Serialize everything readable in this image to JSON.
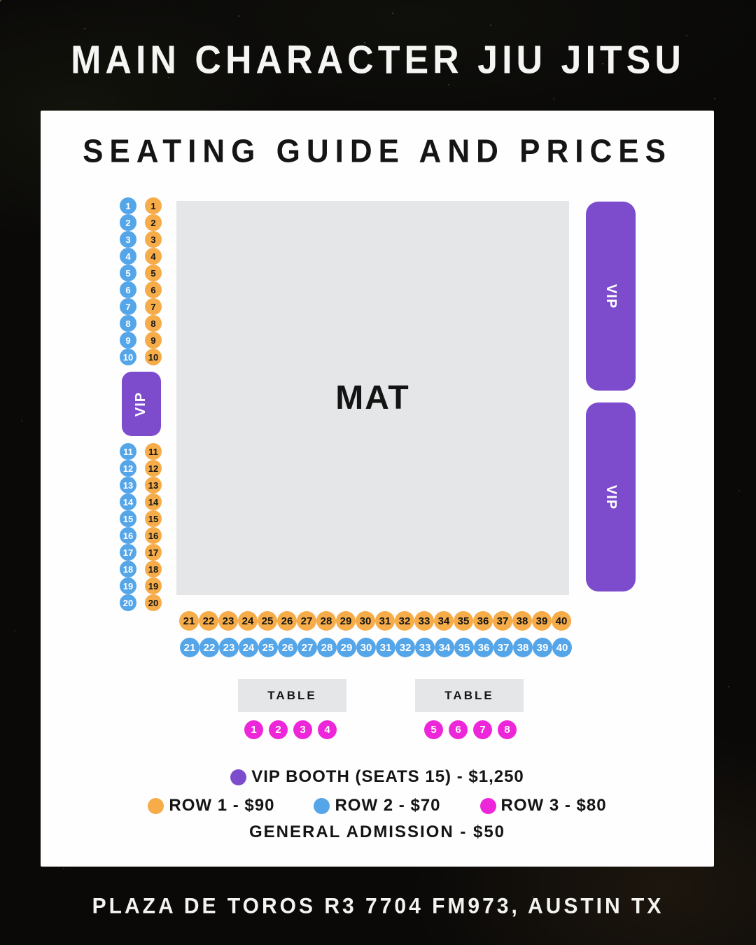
{
  "title": "MAIN CHARACTER JIU JITSU",
  "heading": "SEATING GUIDE AND PRICES",
  "footer": "PLAZA DE TOROS R3 7704 FM973, AUSTIN TX",
  "map": {
    "mat_label": "MAT",
    "vip_left_label": "VIP",
    "vip_right_top_label": "VIP",
    "vip_right_bottom_label": "VIP",
    "table1_label": "TABLE",
    "table2_label": "TABLE",
    "row2_blue_top": [
      "1",
      "2",
      "3",
      "4",
      "5",
      "6",
      "7",
      "8",
      "9",
      "10"
    ],
    "row1_orange_top": [
      "1",
      "2",
      "3",
      "4",
      "5",
      "6",
      "7",
      "8",
      "9",
      "10"
    ],
    "row2_blue_bottom": [
      "11",
      "12",
      "13",
      "14",
      "15",
      "16",
      "17",
      "18",
      "19",
      "20"
    ],
    "row1_orange_bottom": [
      "11",
      "12",
      "13",
      "14",
      "15",
      "16",
      "17",
      "18",
      "19",
      "20"
    ],
    "row1_orange_wide": [
      "21",
      "22",
      "23",
      "24",
      "25",
      "26",
      "27",
      "28",
      "29",
      "30",
      "31",
      "32",
      "33",
      "34",
      "35",
      "36",
      "37",
      "38",
      "39",
      "40"
    ],
    "row2_blue_wide": [
      "21",
      "22",
      "23",
      "24",
      "25",
      "26",
      "27",
      "28",
      "29",
      "30",
      "31",
      "32",
      "33",
      "34",
      "35",
      "36",
      "37",
      "38",
      "39",
      "40"
    ],
    "table1_seats": [
      "1",
      "2",
      "3",
      "4"
    ],
    "table2_seats": [
      "5",
      "6",
      "7",
      "8"
    ]
  },
  "legend": {
    "vip": "VIP BOOTH (SEATS 15) - $1,250",
    "row1": "ROW 1 - $90",
    "row2": "ROW 2 - $70",
    "row3": "ROW 3 - $80",
    "general": "GENERAL ADMISSION - $50"
  },
  "colors": {
    "purple": "#7d4ccd",
    "blue": "#55a5e9",
    "orange": "#f5ac49",
    "magenta": "#ee26d9",
    "gray": "#e4e6e8",
    "card": "#fefefe",
    "bg": "#0a0908"
  }
}
